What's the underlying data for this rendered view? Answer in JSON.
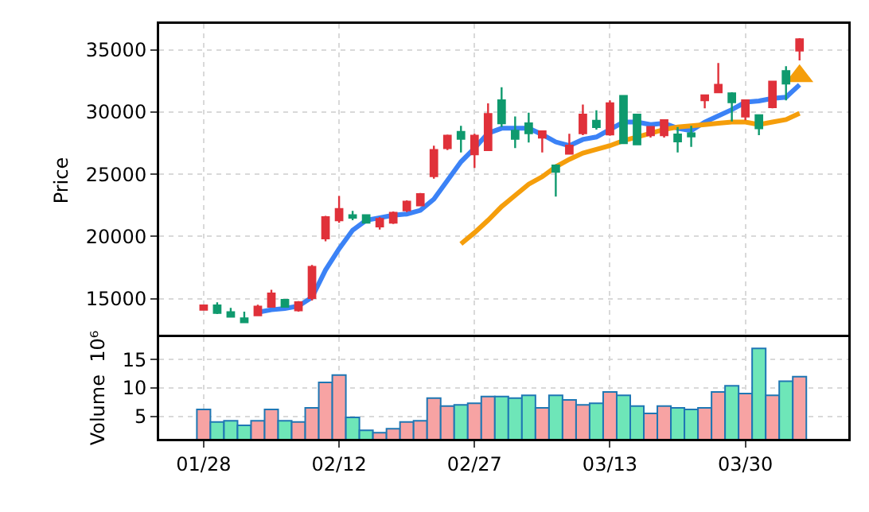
{
  "chart_data": [
    {
      "type": "candlestick",
      "ylabel": "Price",
      "grid": true,
      "tick_labels": "y",
      "categories": [
        null,
        null,
        null,
        null,
        null,
        null,
        null,
        null,
        null,
        null,
        null,
        null,
        null,
        null,
        null,
        null,
        null,
        null,
        null,
        null,
        null,
        null,
        null,
        null,
        null,
        null,
        null,
        null,
        null,
        null,
        null,
        null,
        null,
        null,
        null,
        null,
        null,
        null,
        null,
        null,
        null,
        null,
        null,
        null,
        null
      ],
      "ohlc": [
        [
          14100,
          14500,
          14050,
          14450
        ],
        [
          14450,
          14700,
          13750,
          13850
        ],
        [
          13900,
          14250,
          13550,
          13550
        ],
        [
          13400,
          13950,
          13050,
          13100
        ],
        [
          13650,
          14500,
          13600,
          14350
        ],
        [
          14350,
          15700,
          14350,
          15400
        ],
        [
          14900,
          14950,
          14300,
          14350
        ],
        [
          14050,
          14800,
          13950,
          14700
        ],
        [
          15050,
          17700,
          14850,
          17550
        ],
        [
          19850,
          21650,
          19600,
          21550
        ],
        [
          21300,
          23250,
          21100,
          22200
        ],
        [
          21700,
          22050,
          21300,
          21500
        ],
        [
          21700,
          21750,
          21050,
          21100
        ],
        [
          20800,
          21550,
          20550,
          21400
        ],
        [
          21100,
          22000,
          21000,
          21900
        ],
        [
          22100,
          22900,
          21950,
          22800
        ],
        [
          22500,
          23500,
          22450,
          23400
        ],
        [
          24850,
          27300,
          24650,
          26950
        ],
        [
          27100,
          28200,
          26950,
          28100
        ],
        [
          28400,
          28900,
          26750,
          27850
        ],
        [
          26600,
          28250,
          25500,
          28100
        ],
        [
          26950,
          30700,
          26900,
          29850
        ],
        [
          30950,
          32000,
          28800,
          29100
        ],
        [
          28500,
          29650,
          27100,
          27850
        ],
        [
          29100,
          29950,
          27550,
          28300
        ],
        [
          27950,
          28500,
          26750,
          28450
        ],
        [
          25700,
          25800,
          23200,
          25200
        ],
        [
          26650,
          28250,
          26600,
          27300
        ],
        [
          28300,
          30600,
          28150,
          29800
        ],
        [
          29300,
          30150,
          28600,
          28800
        ],
        [
          28200,
          30950,
          28100,
          30700
        ],
        [
          31300,
          31350,
          27450,
          27500
        ],
        [
          29800,
          29850,
          27350,
          27400
        ],
        [
          28150,
          28850,
          27950,
          28800
        ],
        [
          28150,
          29400,
          27950,
          29350
        ],
        [
          28200,
          28800,
          26750,
          27650
        ],
        [
          28300,
          28900,
          27200,
          28050
        ],
        [
          30950,
          31400,
          30300,
          31350
        ],
        [
          31600,
          33950,
          31600,
          32200
        ],
        [
          31500,
          31600,
          29250,
          30800
        ],
        [
          29650,
          31000,
          29350,
          30950
        ],
        [
          29750,
          29800,
          28150,
          28700
        ],
        [
          30400,
          32450,
          30300,
          32450
        ],
        [
          33300,
          33700,
          30950,
          32300
        ],
        [
          34950,
          35950,
          34150,
          35850
        ]
      ],
      "colors": [
        "#e0313a",
        "#0f9a6e",
        "#0f9a6e",
        "#0f9a6e",
        "#e0313a",
        "#e0313a",
        "#0f9a6e",
        "#e0313a",
        "#e0313a",
        "#e0313a",
        "#e0313a",
        "#0f9a6e",
        "#0f9a6e",
        "#e0313a",
        "#e0313a",
        "#e0313a",
        "#e0313a",
        "#e0313a",
        "#e0313a",
        "#0f9a6e",
        "#e0313a",
        "#e0313a",
        "#0f9a6e",
        "#0f9a6e",
        "#0f9a6e",
        "#e0313a",
        "#0f9a6e",
        "#e0313a",
        "#e0313a",
        "#0f9a6e",
        "#e0313a",
        "#0f9a6e",
        "#0f9a6e",
        "#e0313a",
        "#e0313a",
        "#0f9a6e",
        "#0f9a6e",
        "#e0313a",
        "#e0313a",
        "#0f9a6e",
        "#e0313a",
        "#0f9a6e",
        "#e0313a",
        "#0f9a6e",
        "#e0313a"
      ],
      "series": [
        {
          "type": "line",
          "color": "#3b82f6",
          "values": [
            null,
            null,
            null,
            null,
            13900,
            14100,
            14200,
            14400,
            15100,
            17300,
            19000,
            20500,
            21300,
            21500,
            21700,
            21800,
            22100,
            23000,
            24500,
            26000,
            27100,
            28300,
            28700,
            28700,
            28700,
            28200,
            27600,
            27300,
            27800,
            28000,
            28600,
            29200,
            29200,
            29000,
            29100,
            28700,
            28500,
            29200,
            29700,
            30200,
            30800,
            30900,
            31100,
            31200,
            32200
          ]
        },
        {
          "type": "line",
          "color": "#f59e0b",
          "values": [
            null,
            null,
            null,
            null,
            null,
            null,
            null,
            null,
            null,
            null,
            null,
            null,
            null,
            null,
            null,
            null,
            null,
            null,
            null,
            19400,
            20300,
            21300,
            22400,
            23300,
            24200,
            24800,
            25600,
            26200,
            26700,
            27000,
            27300,
            27700,
            28000,
            28300,
            28600,
            28800,
            28900,
            29000,
            29100,
            29200,
            29200,
            29000,
            29200,
            29400,
            29900
          ]
        },
        {
          "type": "scatter",
          "marker": "triangle",
          "color": "#f59e0b",
          "values": [
            null,
            null,
            null,
            null,
            null,
            null,
            null,
            null,
            null,
            null,
            null,
            null,
            null,
            null,
            null,
            null,
            null,
            null,
            null,
            null,
            null,
            null,
            null,
            null,
            null,
            null,
            null,
            null,
            null,
            null,
            null,
            null,
            null,
            null,
            null,
            null,
            null,
            null,
            null,
            null,
            null,
            null,
            null,
            null,
            32900
          ]
        }
      ],
      "ylim": [
        11900,
        37100
      ],
      "yticks": [
        15000,
        20000,
        25000,
        30000,
        35000
      ]
    },
    {
      "type": "bar",
      "ylabel": "Volume  10⁶",
      "grid": true,
      "categories": [
        "01/28",
        null,
        null,
        null,
        null,
        null,
        null,
        null,
        null,
        null,
        "02/12",
        null,
        null,
        null,
        null,
        null,
        null,
        null,
        null,
        null,
        "02/27",
        null,
        null,
        null,
        null,
        null,
        null,
        null,
        null,
        null,
        "03/13",
        null,
        null,
        null,
        null,
        null,
        null,
        null,
        null,
        null,
        "03/30",
        null,
        null,
        null,
        null
      ],
      "values": [
        6.2,
        4,
        4.2,
        3.4,
        4.2,
        6.2,
        4.2,
        4,
        6.5,
        11,
        12.3,
        4.8,
        2.5,
        2.1,
        2.8,
        4,
        4.2,
        8.2,
        6.8,
        7,
        7.3,
        8.5,
        8.5,
        8.2,
        8.7,
        6.5,
        8.7,
        7.9,
        7,
        7.3,
        9.3,
        8.7,
        6.8,
        5.5,
        6.8,
        6.5,
        6.2,
        6.5,
        9.3,
        10.4,
        9,
        17,
        8.7,
        11.2,
        12
      ],
      "colors": [
        "#f7a3a3",
        "#6ee6b8",
        "#6ee6b8",
        "#6ee6b8",
        "#f7a3a3",
        "#f7a3a3",
        "#6ee6b8",
        "#f7a3a3",
        "#f7a3a3",
        "#f7a3a3",
        "#f7a3a3",
        "#6ee6b8",
        "#6ee6b8",
        "#f7a3a3",
        "#f7a3a3",
        "#f7a3a3",
        "#f7a3a3",
        "#f7a3a3",
        "#f7a3a3",
        "#6ee6b8",
        "#f7a3a3",
        "#f7a3a3",
        "#6ee6b8",
        "#6ee6b8",
        "#6ee6b8",
        "#f7a3a3",
        "#6ee6b8",
        "#f7a3a3",
        "#f7a3a3",
        "#6ee6b8",
        "#f7a3a3",
        "#6ee6b8",
        "#6ee6b8",
        "#f7a3a3",
        "#f7a3a3",
        "#6ee6b8",
        "#6ee6b8",
        "#f7a3a3",
        "#f7a3a3",
        "#6ee6b8",
        "#f7a3a3",
        "#6ee6b8",
        "#f7a3a3",
        "#6ee6b8",
        "#f7a3a3"
      ],
      "ylim": [
        1,
        19
      ],
      "yticks": [
        5,
        10,
        15
      ]
    }
  ]
}
